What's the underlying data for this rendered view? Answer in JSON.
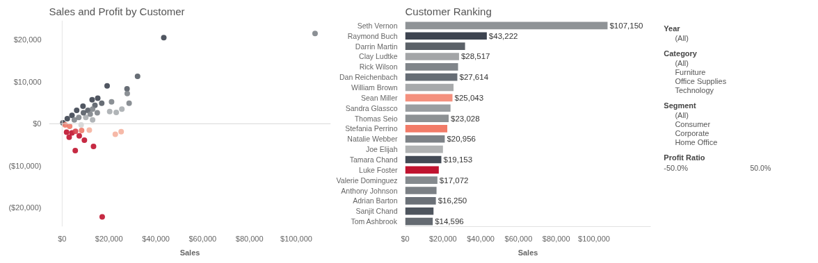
{
  "chart_data": [
    {
      "type": "scatter",
      "title": "Sales and Profit by Customer",
      "xlabel": "Sales",
      "x": [
        108000,
        43400,
        32200,
        19200,
        27700,
        27800,
        28600,
        21100,
        12800,
        15200,
        16900,
        8900,
        20300,
        23100,
        25500,
        14000,
        11000,
        6200,
        4200,
        2200,
        300,
        1300,
        3200,
        8100,
        13000,
        10100,
        11600,
        22700,
        25200,
        8300,
        1900,
        3000,
        4200,
        5700,
        7300,
        9500,
        13400,
        5600,
        17100,
        5200,
        7100,
        9100,
        12000,
        15000,
        13000
      ],
      "series": [
        {
          "values": [
            21500,
            20500,
            11300,
            9000,
            8300,
            7200,
            4900,
            5200,
            5700,
            6100,
            4900,
            4200,
            2900,
            2700,
            3500,
            4400,
            3200,
            3200,
            2000,
            1200,
            200,
            -300,
            -600,
            -300,
            900,
            1500,
            -1500,
            -2500,
            -1900,
            -1600,
            -2000,
            -3200,
            -2200,
            -1800,
            -2900,
            -3900,
            -5400,
            -6400,
            -22200,
            900,
            1500,
            2600,
            2300,
            2600,
            3500
          ],
          "colors": [
            "#7e848a",
            "#3d4450",
            "#565d66",
            "#3d4450",
            "#565d66",
            "#7e848a",
            "#7e848a",
            "#7e848a",
            "#3d4450",
            "#3d4450",
            "#565d66",
            "#3d4450",
            "#a9adb0",
            "#a9adb0",
            "#a9adb0",
            "#565d66",
            "#565d66",
            "#3d4450",
            "#3d4450",
            "#3d4450",
            "#3d4450",
            "#ee7b6a",
            "#ee7b6a",
            "#d4d4d4",
            "#a9adb0",
            "#a9adb0",
            "#f5b19f",
            "#f5b19f",
            "#f5b19f",
            "#ee7b6a",
            "#c0132f",
            "#c0132f",
            "#c0132f",
            "#d9434c",
            "#c0132f",
            "#c0132f",
            "#c0132f",
            "#c0132f",
            "#c0132f",
            "#7e848a",
            "#7e848a",
            "#565d66",
            "#7e848a",
            "#7e848a",
            "#7e848a"
          ]
        }
      ],
      "marker": "circle",
      "xlim": [
        -5600,
        114700
      ],
      "ylim": [
        -24500,
        24600
      ],
      "xticks": [
        {
          "value": 0,
          "label": "$0"
        },
        {
          "value": 20000,
          "label": "$20,000"
        },
        {
          "value": 40000,
          "label": "$40,000"
        },
        {
          "value": 60000,
          "label": "$60,000"
        },
        {
          "value": 80000,
          "label": "$80,000"
        },
        {
          "value": 100000,
          "label": "$100,000"
        }
      ],
      "yticks": [
        {
          "value": -20000,
          "label": "($20,000)"
        },
        {
          "value": -10000,
          "label": "($10,000)"
        },
        {
          "value": 0,
          "label": "$0"
        },
        {
          "value": 10000,
          "label": "$10,000"
        },
        {
          "value": 20000,
          "label": "$20,000"
        }
      ],
      "ref_lines": [
        {
          "axis": "x",
          "value": 0,
          "color": "#e4e4e4"
        },
        {
          "axis": "y",
          "value": 0,
          "color": "#d8d8d8"
        }
      ],
      "grid": false
    },
    {
      "type": "bar",
      "orientation": "horizontal",
      "title": "Customer Ranking",
      "xlabel": "Sales",
      "categories": [
        "Seth Vernon",
        "Raymond Buch",
        "Darrin Martin",
        "Clay Ludtke",
        "Rick Wilson",
        "Dan Reichenbach",
        "William Brown",
        "Sean Miller",
        "Sandra Glassco",
        "Thomas Seio",
        "Stefania Perrino",
        "Natalie Webber",
        "Joe Elijah",
        "Tamara Chand",
        "Luke Foster",
        "Valerie Dominguez",
        "Anthony Johnson",
        "Adrian Barton",
        "Sanjit Chand",
        "Tom Ashbrook"
      ],
      "values": [
        107150,
        43222,
        31700,
        28517,
        28000,
        27614,
        25600,
        25043,
        24000,
        23028,
        22300,
        20956,
        20000,
        19153,
        17800,
        17072,
        16600,
        16250,
        15000,
        14596
      ],
      "value_labels": [
        "$107,150",
        "$43,222",
        null,
        "$28,517",
        null,
        "$27,614",
        null,
        "$25,043",
        null,
        "$23,028",
        null,
        "$20,956",
        null,
        "$19,153",
        null,
        "$17,072",
        null,
        "$16,250",
        null,
        "$14,596"
      ],
      "colors": [
        "#8f9396",
        "#3d4450",
        "#5b6168",
        "#a3a5a7",
        "#80858a",
        "#666d75",
        "#a7a9ab",
        "#f4907e",
        "#9a9ea1",
        "#8d9194",
        "#f27b68",
        "#7d8287",
        "#b0b2b3",
        "#434a55",
        "#c0132f",
        "#858a8e",
        "#7b8085",
        "#6b7178",
        "#4e555e",
        "#646a71"
      ],
      "xlim": [
        0,
        130000
      ],
      "xticks": [
        {
          "value": 0,
          "label": "$0"
        },
        {
          "value": 20000,
          "label": "$20,000"
        },
        {
          "value": 40000,
          "label": "$40,000"
        },
        {
          "value": 60000,
          "label": "$60,000"
        },
        {
          "value": 80000,
          "label": "$80,000"
        },
        {
          "value": 100000,
          "label": "$100,000"
        }
      ],
      "grid": false
    },
    {
      "type": "other",
      "annotations": [
        "Year",
        "(All)",
        "Category",
        "(All)",
        "Furniture",
        "Office Supplies",
        "Technology",
        "Segment",
        "(All)",
        "Consumer",
        "Corporate",
        "Home Office",
        "Profit Ratio",
        "-50.0%",
        "50.0%"
      ]
    }
  ]
}
